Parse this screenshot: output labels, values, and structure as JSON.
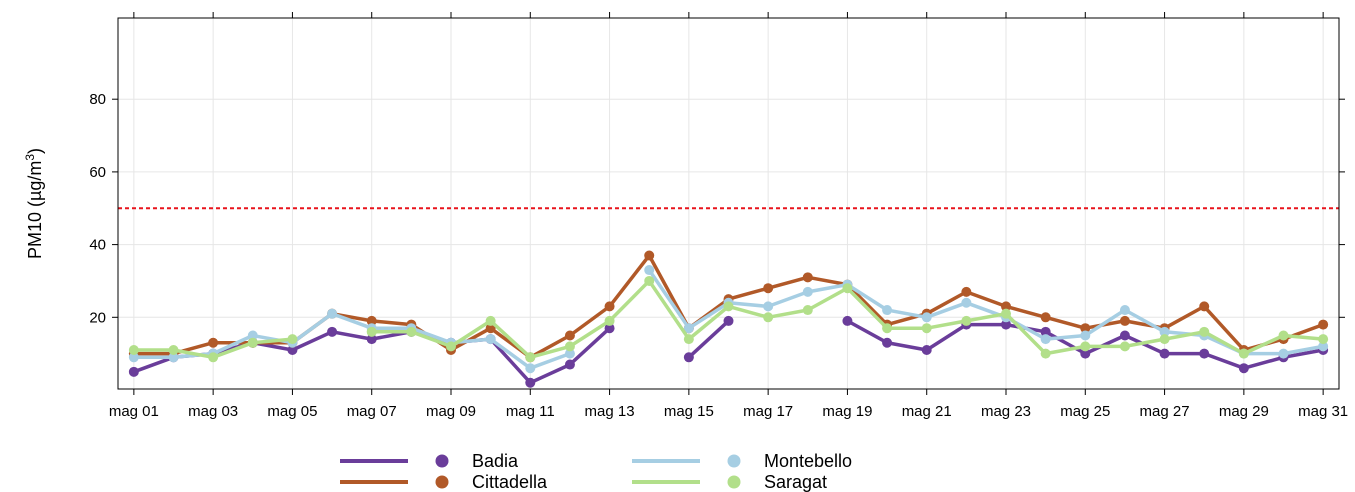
{
  "chart_data": {
    "type": "line",
    "ylabel": "PM10 (µg/m³)",
    "ylabel_base": "PM10 (µg/m",
    "ylabel_sup": "3",
    "ylabel_close": ")",
    "ylim": [
      0,
      100
    ],
    "yticks": [
      20,
      40,
      60,
      80
    ],
    "grid": true,
    "threshold": {
      "value": 50,
      "color": "#e8141c",
      "style": "dotted"
    },
    "x": [
      1,
      2,
      3,
      4,
      5,
      6,
      7,
      8,
      9,
      10,
      11,
      12,
      13,
      14,
      15,
      16,
      17,
      18,
      19,
      20,
      21,
      22,
      23,
      24,
      25,
      26,
      27,
      28,
      29,
      30,
      31
    ],
    "xticks": [
      {
        "day": 1,
        "label": "mag 01"
      },
      {
        "day": 3,
        "label": "mag 03"
      },
      {
        "day": 5,
        "label": "mag 05"
      },
      {
        "day": 7,
        "label": "mag 07"
      },
      {
        "day": 9,
        "label": "mag 09"
      },
      {
        "day": 11,
        "label": "mag 11"
      },
      {
        "day": 13,
        "label": "mag 13"
      },
      {
        "day": 15,
        "label": "mag 15"
      },
      {
        "day": 17,
        "label": "mag 17"
      },
      {
        "day": 19,
        "label": "mag 19"
      },
      {
        "day": 21,
        "label": "mag 21"
      },
      {
        "day": 23,
        "label": "mag 23"
      },
      {
        "day": 25,
        "label": "mag 25"
      },
      {
        "day": 27,
        "label": "mag 27"
      },
      {
        "day": 29,
        "label": "mag 29"
      },
      {
        "day": 31,
        "label": "mag 31"
      }
    ],
    "legend_position": "bottom",
    "series": [
      {
        "name": "Badia",
        "color": "#6a3d9a",
        "values": [
          5,
          9,
          10,
          13,
          11,
          16,
          14,
          16,
          13,
          14,
          2,
          7,
          17,
          null,
          9,
          19,
          null,
          null,
          19,
          13,
          11,
          18,
          18,
          16,
          10,
          15,
          10,
          10,
          6,
          9,
          11
        ]
      },
      {
        "name": "Cittadella",
        "color": "#b15928",
        "values": [
          10,
          10,
          13,
          13,
          13,
          21,
          19,
          18,
          11,
          17,
          9,
          15,
          23,
          37,
          17,
          25,
          28,
          31,
          29,
          18,
          21,
          27,
          23,
          20,
          17,
          19,
          17,
          23,
          11,
          14,
          18
        ]
      },
      {
        "name": "Montebello",
        "color": "#a6cee3",
        "values": [
          9,
          9,
          10,
          15,
          13,
          21,
          17,
          17,
          13,
          14,
          6,
          10,
          null,
          33,
          17,
          24,
          23,
          27,
          29,
          22,
          20,
          24,
          20,
          14,
          15,
          22,
          16,
          15,
          10,
          10,
          12
        ]
      },
      {
        "name": "Saragat",
        "color": "#b2df8a",
        "values": [
          11,
          11,
          9,
          13,
          14,
          null,
          16,
          16,
          12,
          19,
          9,
          12,
          19,
          30,
          14,
          23,
          20,
          22,
          28,
          17,
          17,
          19,
          21,
          10,
          12,
          12,
          14,
          16,
          10,
          15,
          14
        ]
      }
    ]
  }
}
